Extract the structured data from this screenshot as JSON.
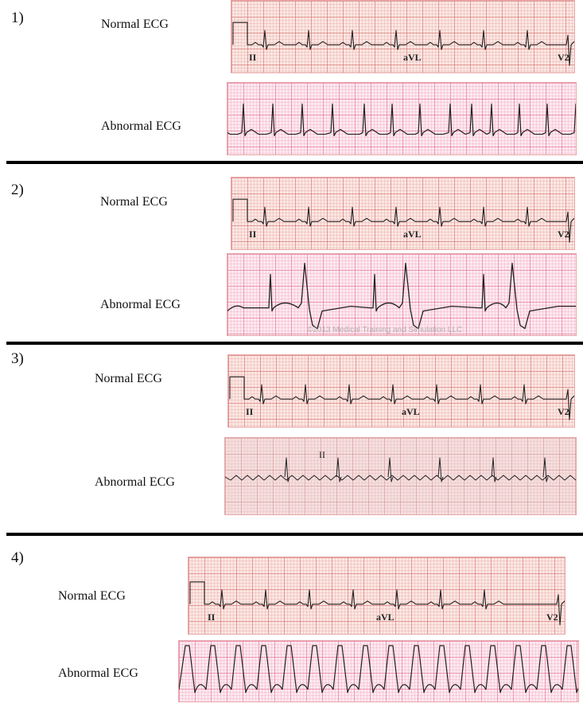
{
  "sections": [
    {
      "number": "1)",
      "normal_label": "Normal ECG",
      "abnormal_label": "Abnormal ECG",
      "leads": [
        "II",
        "aVL",
        "V2"
      ]
    },
    {
      "number": "2)",
      "normal_label": "Normal ECG",
      "abnormal_label": "Abnormal ECG",
      "leads": [
        "II",
        "aVL",
        "V2"
      ],
      "watermark": "©2013 Medical Training and Simulation LLC"
    },
    {
      "number": "3)",
      "normal_label": "Normal ECG",
      "abnormal_label": "Abnormal ECG",
      "leads": [
        "II",
        "aVL",
        "V2"
      ],
      "abnormal_lead": "II"
    },
    {
      "number": "4)",
      "normal_label": "Normal ECG",
      "abnormal_label": "Abnormal ECG",
      "leads": [
        "II",
        "aVL",
        "V2"
      ]
    }
  ],
  "colors": {
    "divider": "#000000",
    "trace": "#222222",
    "grid_red": "#d66e6e",
    "grid_pink": "#e46c96"
  }
}
